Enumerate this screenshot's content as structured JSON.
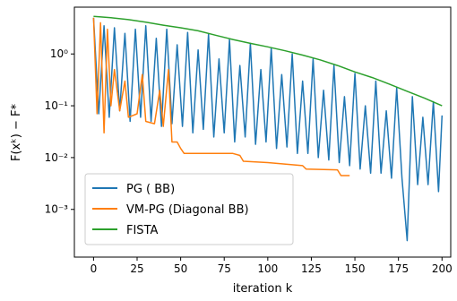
{
  "chart_data": {
    "type": "line",
    "xlabel": "iteration k",
    "ylabel": "F(xᵏ) − F*",
    "log_y": true,
    "legend": "lower left",
    "xlim": [
      -11,
      205
    ],
    "ylim": [
      0.00012,
      8
    ],
    "xticks": [
      0,
      25,
      50,
      75,
      100,
      125,
      150,
      175,
      200
    ],
    "yticks": [
      {
        "value": 0.001,
        "label": "10⁻³"
      },
      {
        "value": 0.01,
        "label": "10⁻²"
      },
      {
        "value": 0.1,
        "label": "10⁻¹"
      },
      {
        "value": 1,
        "label": "10⁰"
      }
    ],
    "series": [
      {
        "name": "PG ( BB)",
        "color": "#1f77b4",
        "x": [
          0,
          3,
          6,
          9,
          12,
          15,
          18,
          21,
          24,
          27,
          30,
          33,
          36,
          39,
          42,
          45,
          48,
          51,
          54,
          57,
          60,
          63,
          66,
          69,
          72,
          75,
          78,
          81,
          84,
          87,
          90,
          93,
          96,
          99,
          102,
          105,
          108,
          111,
          114,
          117,
          120,
          123,
          126,
          129,
          132,
          135,
          138,
          141,
          144,
          147,
          150,
          153,
          156,
          159,
          162,
          165,
          168,
          171,
          174,
          177,
          180,
          183,
          186,
          189,
          192,
          195,
          198,
          200
        ],
        "values": [
          5,
          0.07,
          3.5,
          0.06,
          3.2,
          0.08,
          2.5,
          0.05,
          3.0,
          0.06,
          3.5,
          0.05,
          2.0,
          0.04,
          3.0,
          0.045,
          1.5,
          0.04,
          2.6,
          0.03,
          1.2,
          0.035,
          2.4,
          0.025,
          0.8,
          0.03,
          1.9,
          0.02,
          0.6,
          0.025,
          1.6,
          0.018,
          0.5,
          0.02,
          1.3,
          0.015,
          0.4,
          0.016,
          1.0,
          0.012,
          0.3,
          0.012,
          0.8,
          0.01,
          0.2,
          0.009,
          0.6,
          0.008,
          0.15,
          0.007,
          0.42,
          0.006,
          0.1,
          0.005,
          0.3,
          0.005,
          0.08,
          0.004,
          0.22,
          0.004,
          0.00025,
          0.15,
          0.003,
          0.06,
          0.003,
          0.12,
          0.0022,
          0.065
        ]
      },
      {
        "name": "VM-PG (Diagonal BB)",
        "color": "#ff7f0e",
        "x": [
          0,
          2,
          4,
          6,
          8,
          10,
          12,
          15,
          18,
          20,
          25,
          28,
          30,
          35,
          38,
          40,
          43,
          45,
          48,
          50,
          52,
          60,
          70,
          80,
          84,
          86,
          100,
          120,
          122,
          140,
          142,
          147
        ],
        "values": [
          5,
          0.07,
          4,
          0.03,
          3,
          0.1,
          0.5,
          0.08,
          0.3,
          0.06,
          0.07,
          0.4,
          0.05,
          0.045,
          0.2,
          0.04,
          0.5,
          0.02,
          0.02,
          0.015,
          0.012,
          0.012,
          0.012,
          0.012,
          0.011,
          0.0085,
          0.008,
          0.007,
          0.006,
          0.0058,
          0.0045,
          0.0045
        ]
      },
      {
        "name": "FISTA",
        "color": "#2ca02c",
        "x": [
          0,
          10,
          20,
          30,
          40,
          50,
          60,
          70,
          80,
          90,
          100,
          110,
          120,
          130,
          140,
          150,
          160,
          170,
          180,
          190,
          200
        ],
        "values": [
          5.3,
          5.0,
          4.6,
          4.1,
          3.6,
          3.2,
          2.8,
          2.3,
          1.9,
          1.6,
          1.37,
          1.15,
          0.95,
          0.77,
          0.6,
          0.45,
          0.35,
          0.26,
          0.19,
          0.14,
          0.1
        ]
      }
    ]
  }
}
